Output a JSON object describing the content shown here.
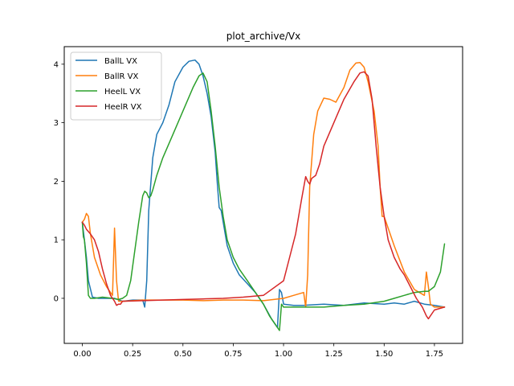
{
  "chart_data": {
    "type": "line",
    "title": "plot_archive/Vx",
    "xlabel": "",
    "ylabel": "",
    "xlim": [
      -0.09,
      1.89
    ],
    "ylim": [
      -0.77,
      4.3
    ],
    "xticks": [
      0.0,
      0.25,
      0.5,
      0.75,
      1.0,
      1.25,
      1.5,
      1.75
    ],
    "xtick_labels": [
      "0.00",
      "0.25",
      "0.50",
      "0.75",
      "1.00",
      "1.25",
      "1.50",
      "1.75"
    ],
    "yticks": [
      0,
      1,
      2,
      3,
      4
    ],
    "ytick_labels": [
      "0",
      "1",
      "2",
      "3",
      "4"
    ],
    "grid": false,
    "legend_position": "top-left",
    "series": [
      {
        "name": "BallL VX",
        "color": "#1f77b4",
        "x": [
          0.0,
          0.01,
          0.02,
          0.03,
          0.05,
          0.08,
          0.12,
          0.16,
          0.2,
          0.25,
          0.28,
          0.3,
          0.31,
          0.32,
          0.33,
          0.35,
          0.37,
          0.4,
          0.43,
          0.46,
          0.5,
          0.53,
          0.56,
          0.58,
          0.6,
          0.62,
          0.64,
          0.66,
          0.67,
          0.68,
          0.69,
          0.7,
          0.72,
          0.75,
          0.78,
          0.82,
          0.86,
          0.9,
          0.94,
          0.97,
          0.98,
          0.99,
          1.0,
          1.05,
          1.1,
          1.2,
          1.3,
          1.4,
          1.5,
          1.55,
          1.6,
          1.65,
          1.7,
          1.75,
          1.8
        ],
        "y": [
          1.3,
          1.0,
          0.7,
          0.3,
          0.02,
          0.0,
          0.0,
          0.0,
          -0.05,
          -0.03,
          -0.03,
          -0.03,
          -0.15,
          0.3,
          1.5,
          2.4,
          2.8,
          3.0,
          3.3,
          3.7,
          3.95,
          4.05,
          4.07,
          4.0,
          3.8,
          3.5,
          3.1,
          2.5,
          2.0,
          1.55,
          1.5,
          1.3,
          0.9,
          0.6,
          0.4,
          0.25,
          0.1,
          -0.1,
          -0.35,
          -0.5,
          0.15,
          0.1,
          -0.1,
          -0.12,
          -0.12,
          -0.1,
          -0.12,
          -0.08,
          -0.1,
          -0.08,
          -0.1,
          -0.05,
          -0.1,
          -0.12,
          -0.15
        ]
      },
      {
        "name": "BallR VX",
        "color": "#ff7f0e",
        "x": [
          0.0,
          0.01,
          0.02,
          0.03,
          0.04,
          0.06,
          0.09,
          0.12,
          0.15,
          0.16,
          0.17,
          0.18,
          0.19,
          0.2,
          0.3,
          0.4,
          0.5,
          0.6,
          0.7,
          0.8,
          0.9,
          1.0,
          1.05,
          1.1,
          1.11,
          1.12,
          1.13,
          1.15,
          1.17,
          1.2,
          1.23,
          1.26,
          1.3,
          1.33,
          1.36,
          1.38,
          1.4,
          1.42,
          1.45,
          1.47,
          1.48,
          1.49,
          1.5,
          1.55,
          1.6,
          1.65,
          1.7,
          1.71,
          1.72,
          1.73,
          1.75,
          1.8
        ],
        "y": [
          1.3,
          1.35,
          1.45,
          1.4,
          1.1,
          0.7,
          0.4,
          0.2,
          0.05,
          1.2,
          0.3,
          -0.05,
          -0.05,
          -0.05,
          -0.03,
          -0.03,
          -0.03,
          -0.04,
          -0.03,
          -0.03,
          -0.04,
          0.0,
          0.05,
          0.1,
          -0.15,
          0.4,
          1.9,
          2.8,
          3.2,
          3.42,
          3.4,
          3.35,
          3.6,
          3.9,
          4.02,
          4.03,
          3.95,
          3.7,
          3.2,
          2.6,
          1.9,
          1.4,
          1.4,
          0.9,
          0.45,
          0.15,
          0.05,
          0.45,
          0.2,
          -0.1,
          -0.15,
          -0.15
        ]
      },
      {
        "name": "HeelL VX",
        "color": "#2ca02c",
        "x": [
          0.0,
          0.005,
          0.01,
          0.02,
          0.03,
          0.04,
          0.06,
          0.1,
          0.15,
          0.18,
          0.2,
          0.22,
          0.24,
          0.26,
          0.28,
          0.3,
          0.31,
          0.32,
          0.33,
          0.34,
          0.35,
          0.37,
          0.4,
          0.45,
          0.5,
          0.55,
          0.58,
          0.6,
          0.62,
          0.64,
          0.66,
          0.68,
          0.7,
          0.72,
          0.75,
          0.78,
          0.82,
          0.86,
          0.9,
          0.93,
          0.96,
          0.98,
          0.99,
          1.0,
          1.05,
          1.1,
          1.2,
          1.3,
          1.4,
          1.5,
          1.55,
          1.6,
          1.65,
          1.7,
          1.72,
          1.75,
          1.78,
          1.8
        ],
        "y": [
          1.3,
          1.05,
          1.0,
          0.6,
          0.05,
          0.0,
          0.0,
          0.02,
          0.0,
          -0.02,
          0.0,
          0.05,
          0.3,
          0.8,
          1.3,
          1.75,
          1.83,
          1.8,
          1.72,
          1.75,
          1.85,
          2.1,
          2.4,
          2.8,
          3.2,
          3.6,
          3.8,
          3.85,
          3.7,
          3.2,
          2.6,
          1.9,
          1.4,
          1.0,
          0.7,
          0.5,
          0.3,
          0.1,
          -0.1,
          -0.3,
          -0.45,
          -0.55,
          -0.1,
          -0.15,
          -0.15,
          -0.15,
          -0.15,
          -0.12,
          -0.1,
          -0.05,
          0.0,
          0.05,
          0.1,
          0.12,
          0.12,
          0.2,
          0.45,
          0.93
        ]
      },
      {
        "name": "HeelR VX",
        "color": "#d62728",
        "x": [
          0.0,
          0.01,
          0.02,
          0.04,
          0.06,
          0.08,
          0.1,
          0.12,
          0.14,
          0.16,
          0.17,
          0.18,
          0.19,
          0.2,
          0.3,
          0.4,
          0.5,
          0.6,
          0.7,
          0.8,
          0.9,
          1.0,
          1.03,
          1.06,
          1.09,
          1.11,
          1.12,
          1.13,
          1.14,
          1.16,
          1.18,
          1.2,
          1.25,
          1.3,
          1.35,
          1.38,
          1.4,
          1.42,
          1.44,
          1.46,
          1.48,
          1.5,
          1.52,
          1.55,
          1.58,
          1.6,
          1.63,
          1.66,
          1.69,
          1.71,
          1.72,
          1.75,
          1.8
        ],
        "y": [
          1.3,
          1.25,
          1.18,
          1.1,
          1.0,
          0.8,
          0.5,
          0.25,
          0.05,
          -0.05,
          -0.12,
          -0.1,
          -0.1,
          -0.05,
          -0.04,
          -0.03,
          -0.02,
          -0.01,
          0.0,
          0.02,
          0.05,
          0.3,
          0.7,
          1.1,
          1.7,
          2.08,
          2.0,
          1.95,
          2.05,
          2.1,
          2.3,
          2.6,
          3.0,
          3.4,
          3.7,
          3.85,
          3.87,
          3.8,
          3.4,
          2.6,
          1.9,
          1.4,
          1.0,
          0.7,
          0.5,
          0.4,
          0.2,
          0.0,
          -0.15,
          -0.3,
          -0.35,
          -0.2,
          -0.15
        ]
      }
    ]
  }
}
